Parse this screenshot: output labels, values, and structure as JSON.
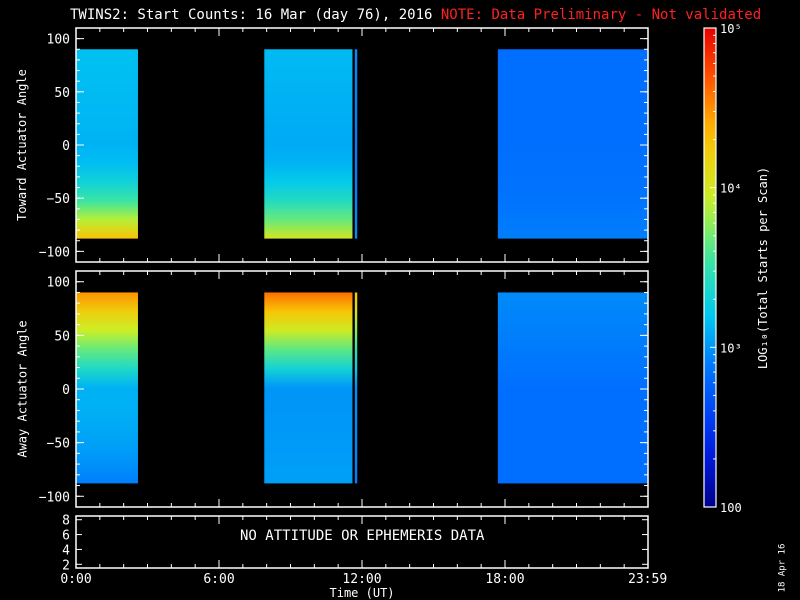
{
  "title": {
    "main": "TWINS2: Start Counts: 16 Mar (day  76), 2016",
    "note": "NOTE: Data Preliminary - Not validated",
    "note_color": "#ff2020"
  },
  "panels": {
    "toward": {
      "ylabel": "Toward Actuator Angle"
    },
    "away": {
      "ylabel": "Away Actuator Angle"
    },
    "attitude": {
      "message": "NO ATTITUDE OR EPHEMERIS DATA"
    }
  },
  "xaxis": {
    "label": "Time (UT)"
  },
  "colorbar": {
    "label": "LOG₁₀(Total Starts per Scan)",
    "scale": "log",
    "range": [
      100,
      100000
    ],
    "ticks": [
      {
        "value": 100000,
        "label": "10⁵"
      },
      {
        "value": 10000,
        "label": "10⁴"
      },
      {
        "value": 1000,
        "label": "10³"
      },
      {
        "value": 100,
        "label": "100"
      }
    ]
  },
  "footer_date": "18 Apr 16",
  "chart_data": [
    {
      "type": "heatmap",
      "name": "Toward Actuator Angle",
      "xlabel": "",
      "ylabel": "Toward Actuator Angle",
      "x_unit": "hours UT",
      "xlim": [
        0,
        24
      ],
      "ylim": [
        -110,
        110
      ],
      "yticks": [
        100,
        50,
        0,
        -50,
        -100
      ],
      "value_scale": "log",
      "data_windows": [
        {
          "start": 0.0,
          "end": 2.6,
          "angle_range": [
            -88,
            90
          ],
          "level_at_plus90": 1500,
          "level_at_zero": 1300,
          "level_at_minus88": 20000
        },
        {
          "start": 7.9,
          "end": 11.6,
          "angle_range": [
            -88,
            90
          ],
          "level_at_plus90": 1400,
          "level_at_zero": 1200,
          "level_at_minus88": 10000
        },
        {
          "start": 11.7,
          "end": 11.8,
          "angle_range": [
            -88,
            90
          ],
          "level_at_plus90": 900,
          "level_at_zero": 800,
          "level_at_minus88": 900
        },
        {
          "start": 17.7,
          "end": 24.0,
          "angle_range": [
            -88,
            90
          ],
          "level_at_plus90": 700,
          "level_at_zero": 700,
          "level_at_minus88": 800
        }
      ]
    },
    {
      "type": "heatmap",
      "name": "Away Actuator Angle",
      "xlabel": "",
      "ylabel": "Away Actuator Angle",
      "x_unit": "hours UT",
      "xlim": [
        0,
        24
      ],
      "ylim": [
        -110,
        110
      ],
      "yticks": [
        100,
        50,
        0,
        -50,
        -100
      ],
      "value_scale": "log",
      "data_windows": [
        {
          "start": 0.0,
          "end": 2.6,
          "angle_range": [
            -88,
            90
          ],
          "level_at_plus90": 30000,
          "level_at_zero": 1300,
          "level_at_minus88": 800
        },
        {
          "start": 7.9,
          "end": 11.6,
          "angle_range": [
            -88,
            90
          ],
          "level_at_plus90": 40000,
          "level_at_zero": 1000,
          "level_at_minus88": 1100
        },
        {
          "start": 11.7,
          "end": 11.8,
          "angle_range": [
            -88,
            90
          ],
          "level_at_plus90": 20000,
          "level_at_zero": 900,
          "level_at_minus88": 800
        },
        {
          "start": 17.7,
          "end": 24.0,
          "angle_range": [
            -88,
            90
          ],
          "level_at_plus90": 900,
          "level_at_zero": 700,
          "level_at_minus88": 700
        }
      ]
    },
    {
      "type": "line",
      "name": "Attitude / Ephemeris",
      "xlabel": "Time (UT)",
      "ylabel": "",
      "xlim": [
        0,
        24
      ],
      "ylim": [
        1.5,
        8.5
      ],
      "yticks": [
        8,
        6,
        4,
        2
      ],
      "xticks": [
        {
          "value": 0,
          "label": "0:00"
        },
        {
          "value": 6,
          "label": "6:00"
        },
        {
          "value": 12,
          "label": "12:00"
        },
        {
          "value": 18,
          "label": "18:00"
        },
        {
          "value": 23.983,
          "label": "23:59"
        }
      ],
      "series": []
    }
  ]
}
